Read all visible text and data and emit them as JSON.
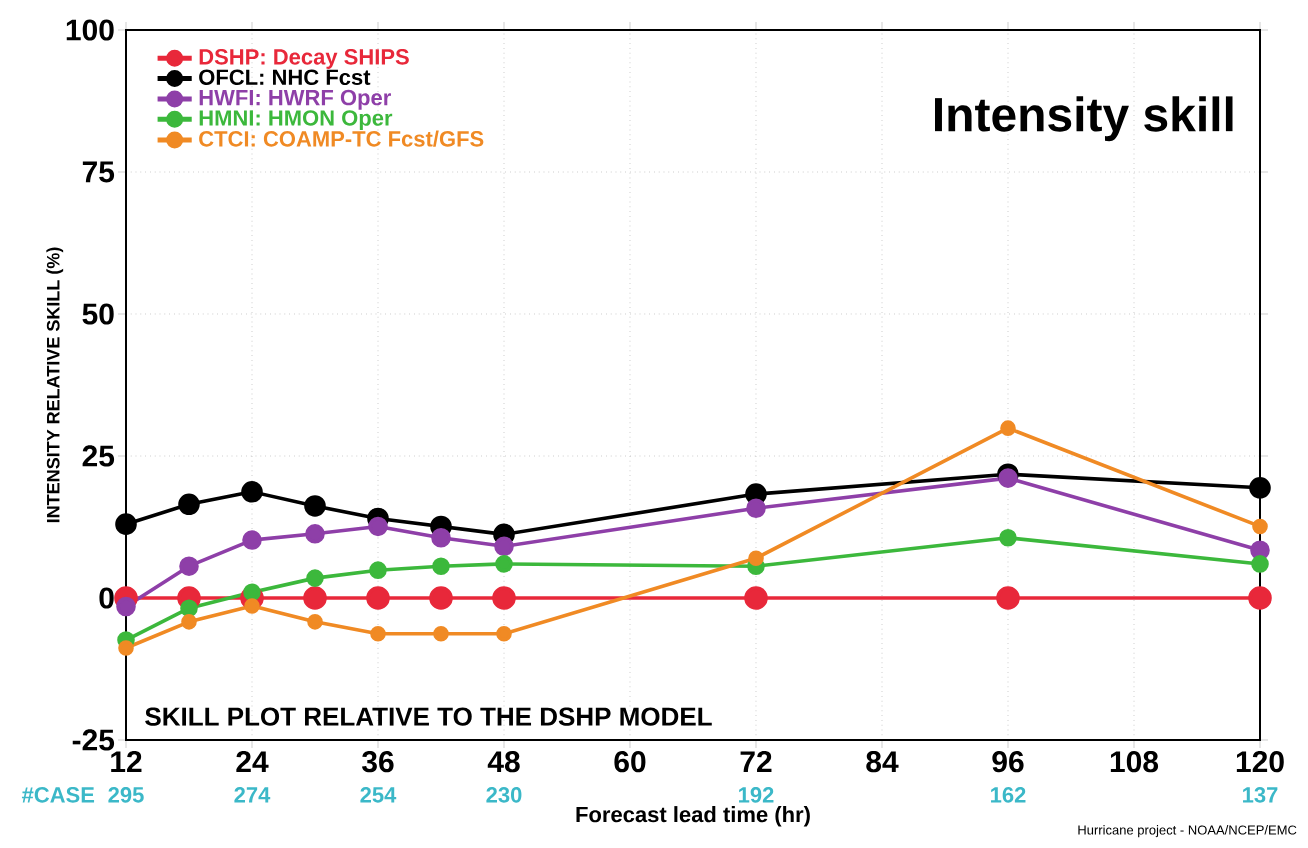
{
  "chart_data": {
    "type": "line",
    "title": "Intensity skill",
    "xlabel": "Forecast lead time (hr)",
    "ylabel": "INTENSITY RELATIVE SKILL (%)",
    "x": [
      12,
      18,
      24,
      30,
      36,
      42,
      48,
      72,
      96,
      120
    ],
    "series": [
      {
        "name": "DSHP: Decay SHIPS",
        "color": "#e8283a",
        "values": [
          0,
          0,
          0,
          0,
          0,
          0,
          0,
          0,
          0,
          0
        ]
      },
      {
        "name": "OFCL: NHC Fcst",
        "color": "#000000",
        "values": [
          13,
          16.5,
          18.7,
          16.2,
          14,
          12.6,
          11.2,
          18.3,
          21.8,
          19.4
        ]
      },
      {
        "name": "HWFI: HWRF Oper",
        "color": "#8e3fa8",
        "values": [
          -1.5,
          5.6,
          10.2,
          11.3,
          12.6,
          10.6,
          9.1,
          15.8,
          21.1,
          8.4
        ]
      },
      {
        "name": "HMNI: HMON Oper",
        "color": "#3cb83c",
        "values": [
          -7.4,
          -1.8,
          1,
          3.5,
          4.9,
          5.6,
          6,
          5.6,
          10.6,
          6
        ]
      },
      {
        "name": "CTCI: COAMP-TC Fcst/GFS",
        "color": "#f08a24",
        "values": [
          -8.8,
          -4.2,
          -1.4,
          -4.2,
          -6.3,
          -6.3,
          -6.3,
          7,
          29.9,
          12.6
        ]
      }
    ],
    "annotations": [
      "SKILL PLOT RELATIVE TO THE DSHP MODEL",
      "#CASE",
      "Hurricane project - NOAA/NCEP/EMC",
      "295",
      "274",
      "254",
      "230",
      "192",
      "162",
      "137"
    ],
    "xlim": [
      12,
      120
    ],
    "xticks": [
      12,
      24,
      36,
      48,
      60,
      72,
      84,
      96,
      108,
      120
    ],
    "ylim": [
      -25,
      100
    ],
    "yticks": [
      -25,
      0,
      25,
      50,
      75,
      100
    ],
    "grid": true,
    "legend": "top left",
    "marker": "circle",
    "line_style": "solid"
  }
}
